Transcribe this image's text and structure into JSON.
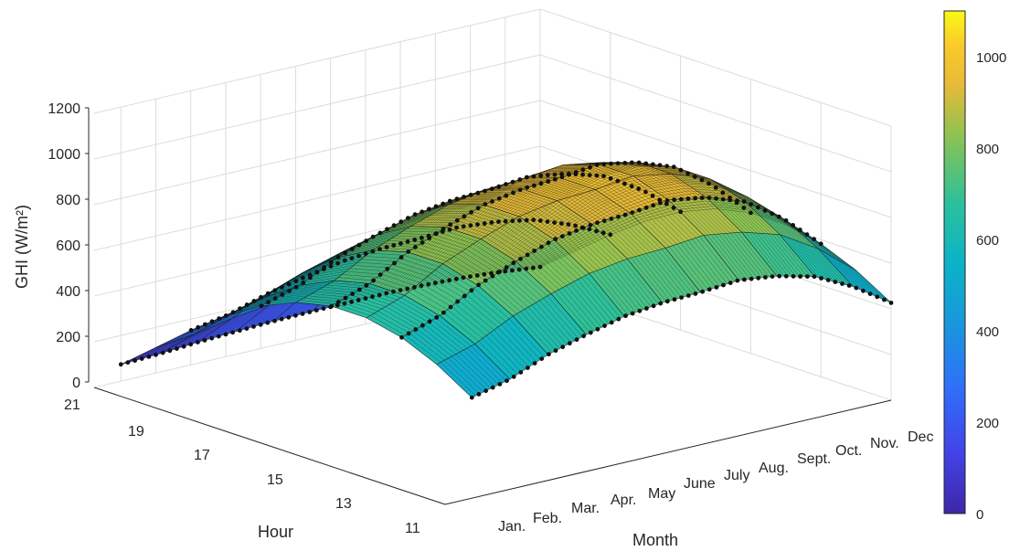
{
  "chart_data": {
    "type": "surface3d",
    "zlabel": "GHI (W/m²)",
    "ylabel": "Hour",
    "xlabel": "Month",
    "z_ticks": [
      "0",
      "200",
      "400",
      "600",
      "800",
      "1000",
      "1200"
    ],
    "zlim": [
      0,
      1200
    ],
    "hour_ticks": [
      "21",
      "19",
      "17",
      "15",
      "13",
      "11"
    ],
    "month_ticks": [
      "Jan.",
      "Feb.",
      "Mar.",
      "Apr.",
      "May",
      "June",
      "July",
      "Aug.",
      "Sept.",
      "Oct.",
      "Nov.",
      "Dec"
    ],
    "colorbar": {
      "ticks": [
        "0",
        "200",
        "400",
        "600",
        "800",
        "1000"
      ],
      "range": [
        0,
        1100
      ],
      "colormap": "parula"
    },
    "grid": true,
    "hours": [
      11,
      12,
      13,
      14,
      15,
      16,
      17,
      18,
      19,
      20,
      21
    ],
    "monthly_peak_ghi": [
      {
        "month": "Jan.",
        "ghi": 640
      },
      {
        "month": "Feb.",
        "ghi": 700
      },
      {
        "month": "Mar.",
        "ghi": 800
      },
      {
        "month": "Apr.",
        "ghi": 870
      },
      {
        "month": "May",
        "ghi": 930
      },
      {
        "month": "June",
        "ghi": 960
      },
      {
        "month": "July",
        "ghi": 970
      },
      {
        "month": "Aug.",
        "ghi": 990
      },
      {
        "month": "Sept.",
        "ghi": 960
      },
      {
        "month": "Oct.",
        "ghi": 900
      },
      {
        "month": "Nov.",
        "ghi": 780
      },
      {
        "month": "Dec",
        "ghi": 620
      }
    ]
  }
}
